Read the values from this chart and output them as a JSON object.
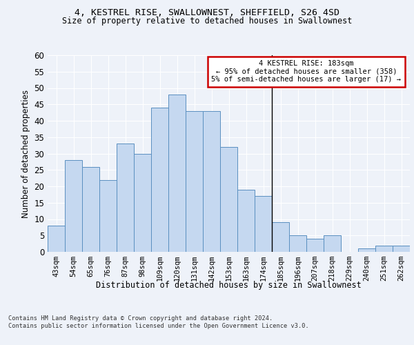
{
  "title_line1": "4, KESTREL RISE, SWALLOWNEST, SHEFFIELD, S26 4SD",
  "title_line2": "Size of property relative to detached houses in Swallownest",
  "xlabel": "Distribution of detached houses by size in Swallownest",
  "ylabel": "Number of detached properties",
  "footnote": "Contains HM Land Registry data © Crown copyright and database right 2024.\nContains public sector information licensed under the Open Government Licence v3.0.",
  "categories": [
    "43sqm",
    "54sqm",
    "65sqm",
    "76sqm",
    "87sqm",
    "98sqm",
    "109sqm",
    "120sqm",
    "131sqm",
    "142sqm",
    "153sqm",
    "163sqm",
    "174sqm",
    "185sqm",
    "196sqm",
    "207sqm",
    "218sqm",
    "229sqm",
    "240sqm",
    "251sqm",
    "262sqm"
  ],
  "values": [
    8,
    28,
    26,
    22,
    33,
    30,
    44,
    48,
    43,
    43,
    32,
    19,
    17,
    9,
    5,
    4,
    5,
    0,
    1,
    2,
    2
  ],
  "bar_color": "#c5d8f0",
  "bar_edge_color": "#5a8fc0",
  "annotation_line1": "4 KESTREL RISE: 183sqm",
  "annotation_line2": "← 95% of detached houses are smaller (358)",
  "annotation_line3": "5% of semi-detached houses are larger (17) →",
  "annotation_box_color": "#ffffff",
  "annotation_box_edge": "#cc0000",
  "vline_index": 13,
  "ylim": [
    0,
    60
  ],
  "yticks": [
    0,
    5,
    10,
    15,
    20,
    25,
    30,
    35,
    40,
    45,
    50,
    55,
    60
  ],
  "background_color": "#eef2f9",
  "plot_bg_color": "#eef2f9"
}
